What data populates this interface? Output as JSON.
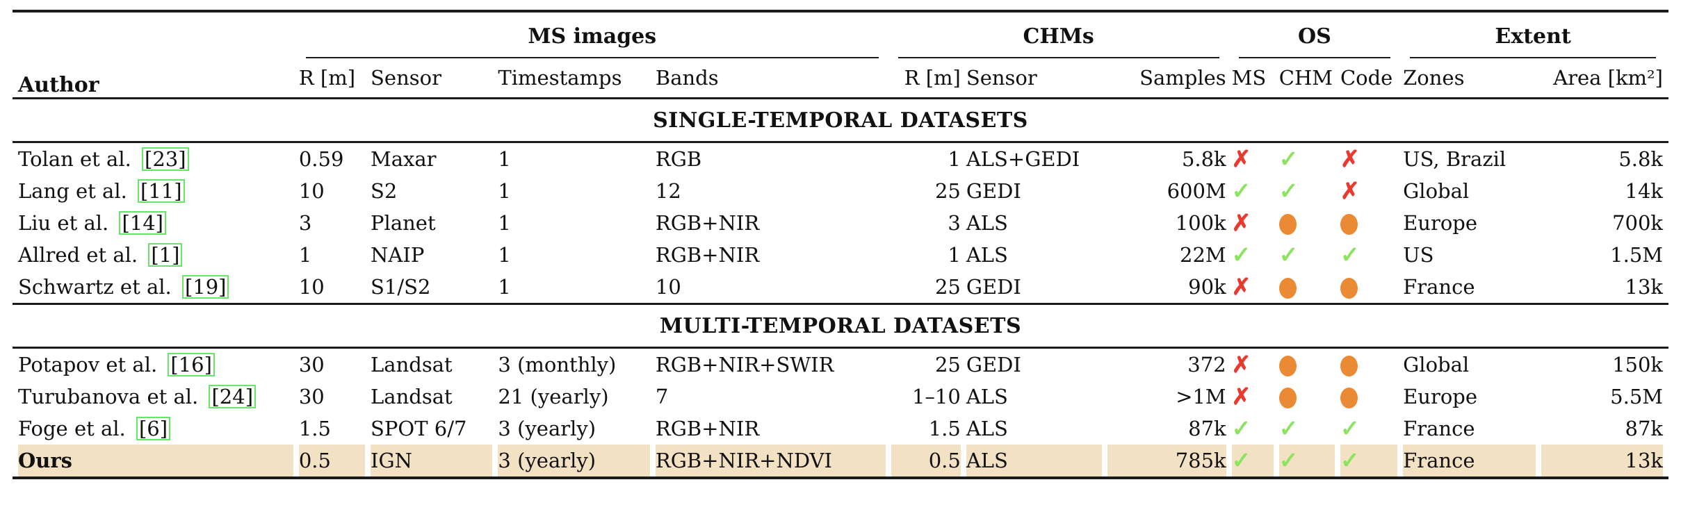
{
  "colors": {
    "highlight_row": "#f3e1c4",
    "check_mark": "#8ce35f",
    "cross_mark": "#e83a2e",
    "partial_circle": "#eb8a35",
    "citation_box": "#66e566",
    "rule": "#1a1a1a",
    "text": "#111111"
  },
  "marks": {
    "yes": "✓",
    "no": "✗",
    "partial": "●"
  },
  "table": {
    "author_header": "Author",
    "groups": [
      {
        "label": "MS images",
        "span": 4
      },
      {
        "label": "CHMs",
        "span": 3
      },
      {
        "label": "OS",
        "span": 3
      },
      {
        "label": "Extent",
        "span": 2
      }
    ],
    "sub_headers": [
      "R [m]",
      "Sensor",
      "Timestamps",
      "Bands",
      "R [m]",
      "Sensor",
      "Samples",
      "MS",
      "CHM",
      "Code",
      "Zones",
      "Area [km²]"
    ],
    "sections": [
      {
        "title": "SINGLE-TEMPORAL DATASETS",
        "rows": [
          {
            "author": "Tolan et al.",
            "cite": "[23]",
            "ms_r": "0.59",
            "ms_sensor": "Maxar",
            "timestamps": "1",
            "bands": "RGB",
            "chm_r": "1",
            "chm_sensor": "ALS+GEDI",
            "samples": "5.8k",
            "os_ms": "no",
            "os_chm": "yes",
            "os_code": "no",
            "zones": "US, Brazil",
            "area": "5.8k",
            "highlight": false,
            "bold": false
          },
          {
            "author": "Lang et al.",
            "cite": "[11]",
            "ms_r": "10",
            "ms_sensor": "S2",
            "timestamps": "1",
            "bands": "12",
            "chm_r": "25",
            "chm_sensor": "GEDI",
            "samples": "600M",
            "os_ms": "yes",
            "os_chm": "yes",
            "os_code": "no",
            "zones": "Global",
            "area": "14k",
            "highlight": false,
            "bold": false
          },
          {
            "author": "Liu et al.",
            "cite": "[14]",
            "ms_r": "3",
            "ms_sensor": "Planet",
            "timestamps": "1",
            "bands": "RGB+NIR",
            "chm_r": "3",
            "chm_sensor": "ALS",
            "samples": "100k",
            "os_ms": "no",
            "os_chm": "partial",
            "os_code": "partial",
            "zones": "Europe",
            "area": "700k",
            "highlight": false,
            "bold": false
          },
          {
            "author": "Allred et al.",
            "cite": "[1]",
            "ms_r": "1",
            "ms_sensor": "NAIP",
            "timestamps": "1",
            "bands": "RGB+NIR",
            "chm_r": "1",
            "chm_sensor": "ALS",
            "samples": "22M",
            "os_ms": "yes",
            "os_chm": "yes",
            "os_code": "yes",
            "zones": "US",
            "area": "1.5M",
            "highlight": false,
            "bold": false
          },
          {
            "author": "Schwartz et al.",
            "cite": "[19]",
            "ms_r": "10",
            "ms_sensor": "S1/S2",
            "timestamps": "1",
            "bands": "10",
            "chm_r": "25",
            "chm_sensor": "GEDI",
            "samples": "90k",
            "os_ms": "no",
            "os_chm": "partial",
            "os_code": "partial",
            "zones": "France",
            "area": "13k",
            "highlight": false,
            "bold": false
          }
        ]
      },
      {
        "title": "MULTI-TEMPORAL DATASETS",
        "rows": [
          {
            "author": "Potapov et al.",
            "cite": "[16]",
            "ms_r": "30",
            "ms_sensor": "Landsat",
            "timestamps": "3 (monthly)",
            "bands": "RGB+NIR+SWIR",
            "chm_r": "25",
            "chm_sensor": "GEDI",
            "samples": "372",
            "os_ms": "no",
            "os_chm": "partial",
            "os_code": "partial",
            "zones": "Global",
            "area": "150k",
            "highlight": false,
            "bold": false
          },
          {
            "author": "Turubanova et al.",
            "cite": "[24]",
            "ms_r": "30",
            "ms_sensor": "Landsat",
            "timestamps": "21 (yearly)",
            "bands": "7",
            "chm_r": "1–10",
            "chm_sensor": "ALS",
            "samples": ">1M",
            "os_ms": "no",
            "os_chm": "partial",
            "os_code": "partial",
            "zones": "Europe",
            "area": "5.5M",
            "highlight": false,
            "bold": false
          },
          {
            "author": "Foge et al.",
            "cite": "[6]",
            "ms_r": "1.5",
            "ms_sensor": "SPOT 6/7",
            "timestamps": "3 (yearly)",
            "bands": "RGB+NIR",
            "chm_r": "1.5",
            "chm_sensor": "ALS",
            "samples": "87k",
            "os_ms": "yes",
            "os_chm": "yes",
            "os_code": "yes",
            "zones": "France",
            "area": "87k",
            "highlight": false,
            "bold": false
          },
          {
            "author": "Ours",
            "cite": null,
            "ms_r": "0.5",
            "ms_sensor": "IGN",
            "timestamps": "3 (yearly)",
            "bands": "RGB+NIR+NDVI",
            "chm_r": "0.5",
            "chm_sensor": "ALS",
            "samples": "785k",
            "os_ms": "yes",
            "os_chm": "yes",
            "os_code": "yes",
            "zones": "France",
            "area": "13k",
            "highlight": true,
            "bold": true
          }
        ]
      }
    ]
  }
}
